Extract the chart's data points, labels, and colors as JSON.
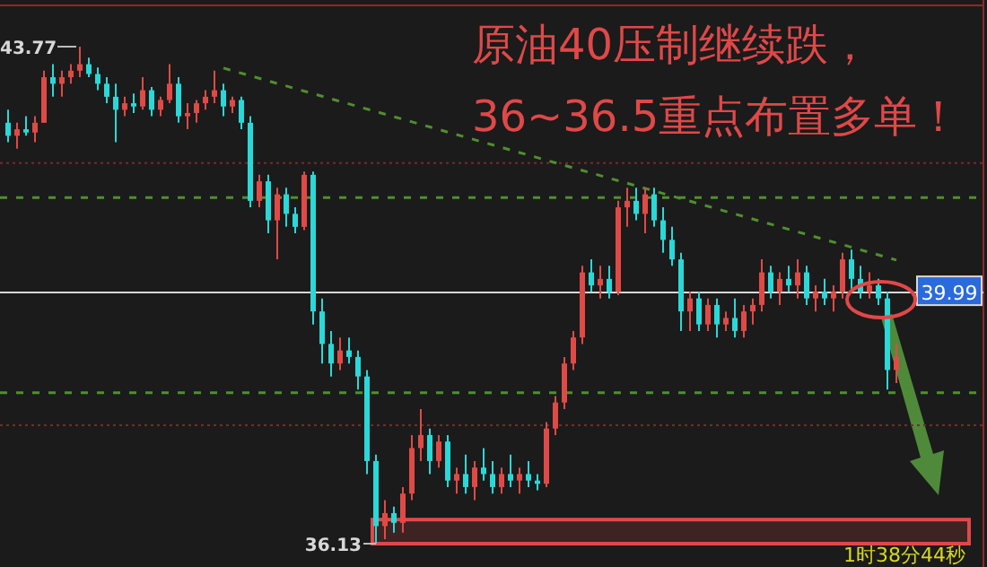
{
  "chart_data": {
    "type": "candlestick",
    "title": "原油40压制继续跌，",
    "subtitle": "36~36.5重点布置多单！",
    "categories": [
      null,
      null,
      null,
      null,
      null,
      null,
      null,
      null,
      null,
      null,
      null,
      null,
      null,
      null,
      null,
      null,
      null,
      null,
      null,
      null,
      null,
      null,
      null,
      null,
      null,
      null,
      null,
      null,
      null,
      null,
      null,
      null,
      null,
      null,
      null,
      null,
      null,
      null,
      null,
      null,
      null,
      null,
      null,
      null,
      null,
      null,
      null,
      null,
      null,
      null,
      null,
      null,
      null,
      null,
      null,
      null,
      null,
      null,
      null,
      null,
      null,
      null,
      null,
      null,
      null,
      null,
      null,
      null,
      null,
      null,
      null,
      null,
      null,
      null,
      null,
      null,
      null,
      null,
      null,
      null,
      null,
      null,
      null,
      null,
      null,
      null,
      null,
      null,
      null,
      null,
      null,
      null,
      null,
      null,
      null,
      null,
      null,
      null,
      null,
      null
    ],
    "ohlc": [
      [
        42.6,
        42.8,
        42.3,
        42.4
      ],
      [
        42.4,
        42.6,
        42.2,
        42.5
      ],
      [
        42.5,
        42.7,
        42.4,
        42.45
      ],
      [
        42.45,
        42.7,
        42.3,
        42.6
      ],
      [
        42.6,
        43.4,
        42.6,
        43.3
      ],
      [
        43.3,
        43.5,
        43.0,
        43.2
      ],
      [
        43.2,
        43.4,
        43.0,
        43.3
      ],
      [
        43.3,
        43.5,
        43.2,
        43.4
      ],
      [
        43.4,
        43.77,
        43.3,
        43.5
      ],
      [
        43.5,
        43.6,
        43.3,
        43.35
      ],
      [
        43.35,
        43.45,
        43.1,
        43.2
      ],
      [
        43.2,
        43.3,
        42.9,
        43.0
      ],
      [
        43.0,
        43.2,
        42.3,
        42.8
      ],
      [
        42.8,
        43.0,
        42.7,
        42.9
      ],
      [
        42.9,
        43.05,
        42.75,
        42.85
      ],
      [
        42.85,
        43.3,
        42.8,
        43.1
      ],
      [
        43.1,
        43.15,
        42.7,
        42.8
      ],
      [
        42.8,
        43.0,
        42.7,
        42.95
      ],
      [
        42.95,
        43.5,
        42.9,
        43.2
      ],
      [
        43.2,
        43.3,
        42.6,
        42.7
      ],
      [
        42.7,
        42.9,
        42.5,
        42.75
      ],
      [
        42.75,
        42.95,
        42.6,
        42.9
      ],
      [
        42.9,
        43.1,
        42.8,
        43.0
      ],
      [
        43.0,
        43.4,
        42.9,
        43.1
      ],
      [
        43.1,
        43.2,
        42.7,
        42.85
      ],
      [
        42.85,
        43.0,
        42.75,
        42.95
      ],
      [
        42.95,
        43.0,
        42.5,
        42.6
      ],
      [
        42.6,
        42.7,
        41.3,
        41.4
      ],
      [
        41.4,
        41.8,
        41.3,
        41.7
      ],
      [
        41.7,
        41.8,
        40.9,
        41.1
      ],
      [
        41.1,
        41.6,
        40.5,
        41.5
      ],
      [
        41.5,
        41.6,
        41.0,
        41.2
      ],
      [
        41.2,
        41.3,
        40.9,
        41.0
      ],
      [
        41.0,
        41.85,
        40.95,
        41.8
      ],
      [
        41.8,
        41.85,
        39.5,
        39.7
      ],
      [
        39.7,
        39.9,
        38.9,
        39.2
      ],
      [
        39.2,
        39.4,
        38.7,
        38.9
      ],
      [
        38.9,
        39.3,
        38.8,
        39.1
      ],
      [
        39.1,
        39.3,
        38.9,
        39.0
      ],
      [
        39.0,
        39.1,
        38.5,
        38.7
      ],
      [
        38.7,
        38.8,
        37.2,
        37.4
      ],
      [
        37.4,
        37.5,
        36.13,
        36.4
      ],
      [
        36.4,
        36.8,
        36.2,
        36.6
      ],
      [
        36.6,
        36.7,
        36.3,
        36.45
      ],
      [
        36.45,
        37.0,
        36.3,
        36.9
      ],
      [
        36.9,
        37.8,
        36.8,
        37.6
      ],
      [
        37.6,
        38.2,
        37.4,
        37.8
      ],
      [
        37.8,
        37.9,
        37.2,
        37.4
      ],
      [
        37.4,
        37.8,
        37.3,
        37.7
      ],
      [
        37.7,
        37.8,
        37.0,
        37.1
      ],
      [
        37.1,
        37.3,
        36.9,
        37.2
      ],
      [
        37.2,
        37.5,
        36.9,
        37.0
      ],
      [
        37.0,
        37.4,
        36.8,
        37.3
      ],
      [
        37.3,
        37.6,
        37.1,
        37.2
      ],
      [
        37.2,
        37.4,
        36.9,
        37.0
      ],
      [
        37.0,
        37.3,
        36.9,
        37.2
      ],
      [
        37.2,
        37.5,
        37.0,
        37.1
      ],
      [
        37.1,
        37.3,
        36.9,
        37.2
      ],
      [
        37.2,
        37.4,
        37.0,
        37.1
      ],
      [
        37.1,
        37.2,
        36.95,
        37.05
      ],
      [
        37.05,
        38.0,
        37.0,
        37.9
      ],
      [
        37.9,
        38.4,
        37.8,
        38.3
      ],
      [
        38.3,
        39.0,
        38.2,
        38.9
      ],
      [
        38.9,
        39.4,
        38.8,
        39.3
      ],
      [
        39.3,
        40.4,
        39.2,
        40.3
      ],
      [
        40.3,
        40.5,
        40.0,
        40.1
      ],
      [
        40.1,
        40.4,
        39.9,
        40.2
      ],
      [
        40.2,
        40.4,
        39.9,
        40.0
      ],
      [
        40.0,
        41.4,
        39.95,
        41.3
      ],
      [
        41.3,
        41.6,
        41.0,
        41.4
      ],
      [
        41.4,
        41.6,
        41.1,
        41.2
      ],
      [
        41.2,
        41.6,
        40.9,
        41.5
      ],
      [
        41.5,
        41.6,
        41.0,
        41.1
      ],
      [
        41.1,
        41.3,
        40.6,
        40.8
      ],
      [
        40.8,
        41.0,
        40.4,
        40.5
      ],
      [
        40.5,
        40.6,
        39.4,
        39.7
      ],
      [
        39.7,
        40.0,
        39.4,
        39.9
      ],
      [
        39.9,
        40.0,
        39.4,
        39.5
      ],
      [
        39.5,
        39.9,
        39.4,
        39.8
      ],
      [
        39.8,
        39.9,
        39.3,
        39.5
      ],
      [
        39.5,
        39.7,
        39.4,
        39.6
      ],
      [
        39.6,
        39.9,
        39.3,
        39.4
      ],
      [
        39.4,
        39.8,
        39.3,
        39.7
      ],
      [
        39.7,
        39.9,
        39.5,
        39.8
      ],
      [
        39.8,
        40.5,
        39.7,
        40.3
      ],
      [
        40.3,
        40.4,
        39.9,
        40.0
      ],
      [
        40.0,
        40.3,
        39.8,
        40.2
      ],
      [
        40.2,
        40.4,
        40.0,
        40.1
      ],
      [
        40.1,
        40.5,
        39.9,
        40.3
      ],
      [
        40.3,
        40.4,
        39.8,
        39.9
      ],
      [
        39.9,
        40.1,
        39.7,
        40.0
      ],
      [
        40.0,
        40.2,
        39.8,
        39.9
      ],
      [
        39.9,
        40.1,
        39.7,
        40.0
      ],
      [
        40.0,
        40.6,
        39.9,
        40.5
      ],
      [
        40.5,
        40.65,
        40.0,
        40.2
      ],
      [
        40.2,
        40.4,
        39.9,
        40.0
      ],
      [
        40.0,
        40.3,
        39.9,
        40.1
      ],
      [
        40.1,
        40.2,
        39.8,
        39.9
      ],
      [
        39.9,
        40.0,
        38.5,
        38.8
      ],
      [
        38.8,
        39.2,
        38.6,
        39.0
      ]
    ],
    "series": [
      {
        "type": "line",
        "color": "#4f8f2f",
        "line_style": "dashed",
        "values": [
          null,
          null,
          null,
          null,
          null,
          null,
          null,
          null,
          null,
          null,
          null,
          null,
          null,
          null,
          null,
          null,
          null,
          null,
          null,
          null,
          null,
          null,
          null,
          null,
          43.44,
          null,
          null,
          null,
          null,
          null,
          null,
          null,
          null,
          null,
          null,
          null,
          null,
          null,
          null,
          null,
          null,
          null,
          null,
          null,
          null,
          null,
          null,
          null,
          null,
          null,
          null,
          null,
          null,
          null,
          null,
          null,
          null,
          null,
          null,
          null,
          null,
          null,
          null,
          null,
          null,
          null,
          null,
          null,
          null,
          null,
          null,
          null,
          null,
          null,
          null,
          null,
          null,
          null,
          null,
          null,
          null,
          null,
          null,
          null,
          null,
          null,
          null,
          null,
          null,
          null,
          null,
          null,
          null,
          null,
          null,
          null,
          null,
          null,
          null,
          40.49
        ]
      }
    ],
    "ref_lines": [
      {
        "axis": "y",
        "value": 41.98,
        "color": "#7a2a2a",
        "line_style": "dotted"
      },
      {
        "axis": "y",
        "value": 41.45,
        "color": "#4f8f2f",
        "line_style": "dashed"
      },
      {
        "axis": "y",
        "value": 39.99,
        "label": "39.99",
        "color": "#d8d8d8",
        "line_style": "solid"
      },
      {
        "axis": "y",
        "value": 38.45,
        "color": "#4f8f2f",
        "line_style": "dashed"
      },
      {
        "axis": "y",
        "value": 37.95,
        "color": "#7a2a2a",
        "line_style": "dotted"
      }
    ],
    "bands": [
      {
        "axis": "y",
        "from": 36.13,
        "to": 36.5,
        "color": "#e04848"
      }
    ],
    "annotations": [
      "43.77",
      "36.13",
      "1时38分44秒"
    ]
  }
}
